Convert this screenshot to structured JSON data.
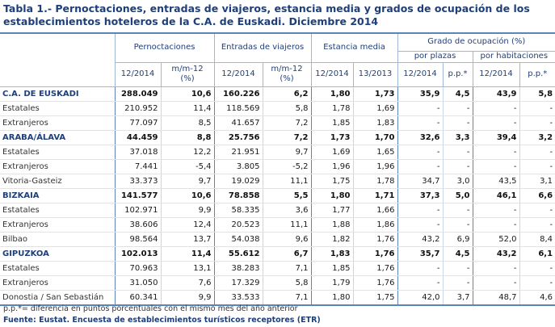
{
  "title": [
    "Tabla 1.- Pernoctaciones, entradas de viajeros, estancia media y grados de ocupación de los",
    "establecimientos hoteleros de la C.A. de Euskadi. Diciembre 2014"
  ],
  "header": {
    "groups": [
      "Pernoctaciones",
      "Entradas de viajeros",
      "Estancia media",
      "Grado de ocupación (%)"
    ],
    "subgroups": [
      "por plazas",
      "por habitaciones"
    ],
    "columns": [
      "12/2014",
      "m/m-12 (%)",
      "12/2014",
      "m/m-12 (%)",
      "12/2014",
      "13/2013",
      "12/2014",
      "p.p.*",
      "12/2014",
      "p.p.*"
    ]
  },
  "rows": [
    {
      "label": "C.A. DE EUSKADI",
      "values": [
        "288.049",
        "10,6",
        "160.226",
        "6,2",
        "1,80",
        "1,73",
        "35,9",
        "4,5",
        "43,9",
        "5,8"
      ]
    },
    {
      "label": "Estatales",
      "values": [
        "210.952",
        "11,4",
        "118.569",
        "5,8",
        "1,78",
        "1,69",
        "-",
        "-",
        "-",
        "-"
      ]
    },
    {
      "label": "Extranjeros",
      "values": [
        "77.097",
        "8,5",
        "41.657",
        "7,2",
        "1,85",
        "1,83",
        "-",
        "-",
        "-",
        "-"
      ]
    },
    {
      "label": "ARABA/ÁLAVA",
      "values": [
        "44.459",
        "8,8",
        "25.756",
        "7,2",
        "1,73",
        "1,70",
        "32,6",
        "3,3",
        "39,4",
        "3,2"
      ]
    },
    {
      "label": "Estatales",
      "values": [
        "37.018",
        "12,2",
        "21.951",
        "9,7",
        "1,69",
        "1,65",
        "-",
        "-",
        "-",
        "-"
      ]
    },
    {
      "label": "Extranjeros",
      "values": [
        "7.441",
        "-5,4",
        "3.805",
        "-5,2",
        "1,96",
        "1,96",
        "-",
        "-",
        "-",
        "-"
      ]
    },
    {
      "label": "Vitoria-Gasteiz",
      "values": [
        "33.373",
        "9,7",
        "19.029",
        "11,1",
        "1,75",
        "1,78",
        "34,7",
        "3,0",
        "43,5",
        "3,1"
      ]
    },
    {
      "label": "BIZKAIA",
      "values": [
        "141.577",
        "10,6",
        "78.858",
        "5,5",
        "1,80",
        "1,71",
        "37,3",
        "5,0",
        "46,1",
        "6,6"
      ]
    },
    {
      "label": "Estatales",
      "values": [
        "102.971",
        "9,9",
        "58.335",
        "3,6",
        "1,77",
        "1,66",
        "-",
        "-",
        "-",
        "-"
      ]
    },
    {
      "label": "Extranjeros",
      "values": [
        "38.606",
        "12,4",
        "20.523",
        "11,1",
        "1,88",
        "1,86",
        "-",
        "-",
        "-",
        "-"
      ]
    },
    {
      "label": "Bilbao",
      "values": [
        "98.564",
        "13,7",
        "54.038",
        "9,6",
        "1,82",
        "1,76",
        "43,2",
        "6,9",
        "52,0",
        "8,4"
      ]
    },
    {
      "label": "GIPUZKOA",
      "values": [
        "102.013",
        "11,4",
        "55.612",
        "6,7",
        "1,83",
        "1,76",
        "35,7",
        "4,5",
        "43,2",
        "6,1"
      ]
    },
    {
      "label": "Estatales",
      "values": [
        "70.963",
        "13,1",
        "38.283",
        "7,1",
        "1,85",
        "1,76",
        "-",
        "-",
        "-",
        "-"
      ]
    },
    {
      "label": "Extranjeros",
      "values": [
        "31.050",
        "7,6",
        "17.329",
        "5,8",
        "1,79",
        "1,76",
        "-",
        "-",
        "-",
        "-"
      ]
    },
    {
      "label": "Donostia / San Sebastián",
      "values": [
        "60.341",
        "9,9",
        "33.533",
        "7,1",
        "1,80",
        "1,75",
        "42,0",
        "3,7",
        "48,7",
        "4,6"
      ]
    }
  ],
  "footnotes": [
    "p.p.*= diferencia en puntos porcentuales con el mismo mes del año anterior",
    "Fuente: Eustat. Encuesta de establecimientos turísticos receptores (ETR)"
  ]
}
